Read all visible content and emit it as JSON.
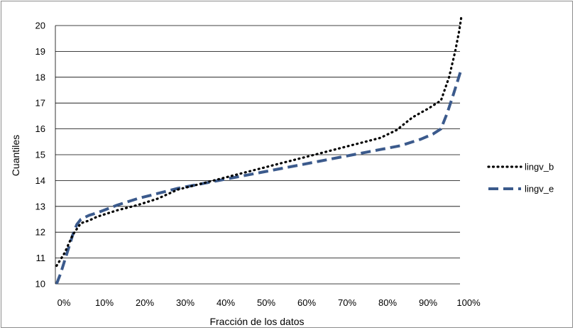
{
  "chart_data": {
    "type": "line",
    "xlabel": "Fracción de los datos",
    "ylabel": "Cuantiles",
    "xlim": [
      0,
      100
    ],
    "ylim": [
      10,
      20
    ],
    "x_ticks": [
      "0%",
      "10%",
      "20%",
      "30%",
      "40%",
      "50%",
      "60%",
      "70%",
      "80%",
      "90%",
      "100%"
    ],
    "y_ticks": [
      "10",
      "11",
      "12",
      "13",
      "14",
      "15",
      "16",
      "17",
      "18",
      "19",
      "20"
    ],
    "grid": "horizontal",
    "legend_position": "right",
    "series": [
      {
        "name": "lingv_b",
        "style": "dotted",
        "color": "#000000",
        "x": [
          0,
          2,
          4,
          6,
          8,
          10,
          15,
          20,
          25,
          30,
          35,
          40,
          45,
          50,
          55,
          60,
          65,
          70,
          75,
          80,
          84,
          88,
          92,
          95,
          97,
          98.5,
          99.5,
          100
        ],
        "y": [
          10.7,
          11.2,
          11.9,
          12.35,
          12.45,
          12.6,
          12.85,
          13.05,
          13.3,
          13.65,
          13.85,
          14.05,
          14.25,
          14.45,
          14.65,
          14.85,
          15.05,
          15.25,
          15.45,
          15.65,
          15.95,
          16.45,
          16.8,
          17.1,
          18.0,
          19.0,
          19.8,
          20.3
        ]
      },
      {
        "name": "lingv_e",
        "style": "dashed",
        "color": "#3b5a8c",
        "x": [
          0,
          1,
          2,
          3,
          4,
          5,
          6,
          8,
          10,
          15,
          20,
          25,
          30,
          35,
          40,
          45,
          50,
          55,
          60,
          65,
          70,
          75,
          80,
          85,
          90,
          93,
          95,
          96.5,
          98,
          99,
          100
        ],
        "y": [
          10.0,
          10.4,
          10.9,
          11.4,
          11.9,
          12.3,
          12.5,
          12.65,
          12.75,
          13.05,
          13.3,
          13.5,
          13.7,
          13.85,
          14.0,
          14.15,
          14.3,
          14.45,
          14.6,
          14.75,
          14.9,
          15.05,
          15.2,
          15.35,
          15.6,
          15.8,
          16.0,
          16.6,
          17.3,
          17.8,
          18.3
        ]
      }
    ]
  }
}
